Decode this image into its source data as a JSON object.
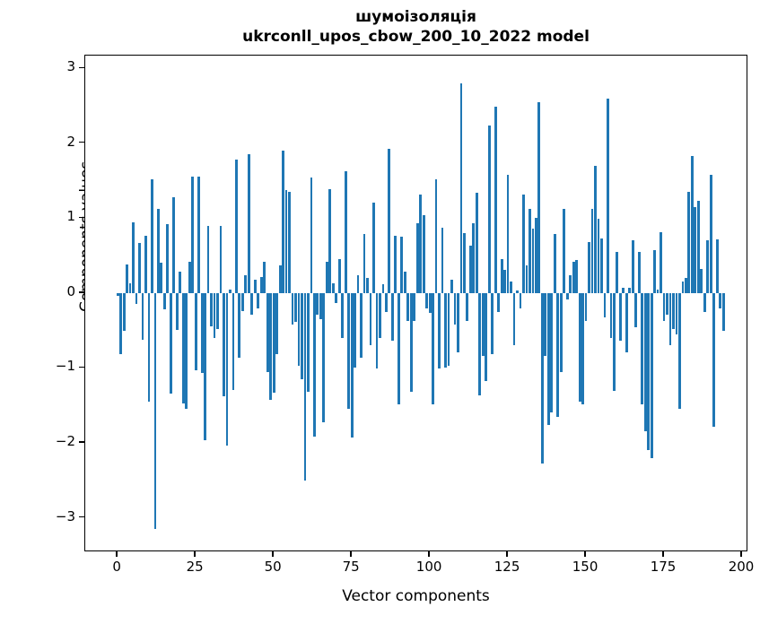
{
  "window": {
    "background": "#ffffff"
  },
  "chart_data": {
    "type": "bar",
    "title_line1": "шумоізоляція",
    "title_line2": "ukrconll_upos_cbow_200_10_2022 model",
    "xlabel": "Vector components",
    "ylabel": "Components values",
    "bar_color": "#1f77b4",
    "grid": false,
    "legend": "none",
    "xlim": [
      -10.4,
      202
    ],
    "ylim": [
      -3.46,
      3.17
    ],
    "xticks": [
      0,
      25,
      50,
      75,
      100,
      125,
      150,
      175,
      200
    ],
    "yticks": [
      3,
      2,
      1,
      0,
      -1,
      -2,
      -3
    ],
    "x_start": 0,
    "values": [
      -0.04,
      -0.82,
      -0.5,
      0.38,
      0.13,
      0.95,
      -0.15,
      0.67,
      -0.62,
      0.77,
      -1.45,
      1.52,
      -3.15,
      1.12,
      0.4,
      -0.22,
      0.92,
      -1.34,
      1.28,
      -0.49,
      0.29,
      -1.47,
      -1.55,
      0.42,
      1.55,
      -1.03,
      1.55,
      -1.07,
      -1.96,
      0.9,
      -0.44,
      -0.6,
      -0.48,
      0.9,
      -1.38,
      -2.03,
      0.05,
      -1.29,
      1.78,
      -0.86,
      -0.24,
      0.24,
      1.85,
      -0.29,
      0.18,
      -0.2,
      0.22,
      0.42,
      -1.05,
      -1.42,
      -1.33,
      -0.82,
      0.37,
      1.9,
      1.38,
      1.35,
      -0.42,
      -0.38,
      -0.97,
      -1.15,
      -2.5,
      -1.32,
      1.54,
      -1.92,
      -0.29,
      -0.35,
      -1.72,
      0.42,
      1.39,
      0.13,
      -0.13,
      0.45,
      -0.6,
      1.63,
      -1.54,
      -1.93,
      -1.0,
      0.24,
      -0.86,
      0.79,
      0.2,
      -0.7,
      1.21,
      -1.01,
      -0.6,
      0.12,
      -0.25,
      1.92,
      -0.64,
      0.77,
      -1.48,
      0.75,
      0.28,
      -0.37,
      -1.32,
      -0.37,
      0.93,
      1.32,
      1.04,
      -0.2,
      -0.26,
      -1.48,
      1.52,
      -1.01,
      0.87,
      -0.99,
      -0.97,
      0.18,
      -0.42,
      -0.79,
      2.8,
      0.8,
      -0.37,
      0.63,
      0.93,
      1.34,
      -1.37,
      -0.84,
      -1.17,
      2.24,
      -0.81,
      2.49,
      -0.25,
      0.45,
      0.31,
      1.58,
      0.15,
      -0.7,
      0.03,
      -0.2,
      1.32,
      0.37,
      1.12,
      0.86,
      1.0,
      2.55,
      -2.27,
      -0.84,
      -1.76,
      -1.59,
      0.79,
      -1.65,
      -1.06,
      1.12,
      -0.09,
      0.24,
      0.42,
      0.44,
      -1.45,
      -1.48,
      -0.37,
      0.68,
      1.12,
      1.7,
      0.99,
      0.73,
      -0.33,
      2.6,
      -0.6,
      -1.3,
      0.55,
      -0.64,
      0.07,
      -0.79,
      0.07,
      0.7,
      -0.46,
      0.55,
      -1.48,
      -1.85,
      -2.1,
      -2.2,
      0.57,
      0.05,
      0.81,
      -0.37,
      -0.29,
      -0.7,
      -0.48,
      -0.55,
      -1.55,
      0.15,
      0.2,
      1.35,
      1.83,
      1.15,
      1.23,
      0.32,
      -0.25,
      0.7,
      1.58,
      -1.78,
      0.72,
      -0.2,
      -0.5,
      0,
      0,
      0,
      0,
      0
    ]
  }
}
